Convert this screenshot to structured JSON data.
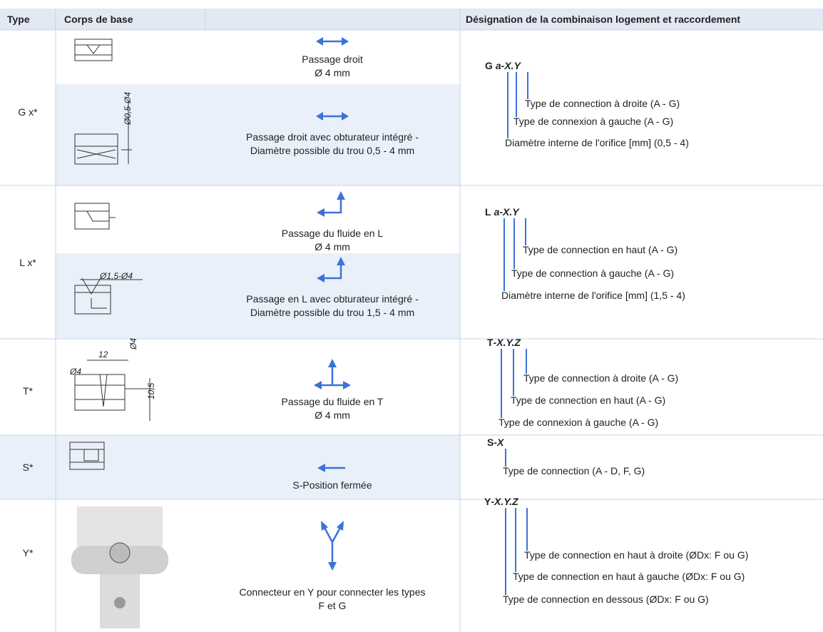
{
  "header": {
    "type": "Type",
    "body": "Corps de base",
    "designation": "Désignation de la combinaison logement et raccordement"
  },
  "groups": [
    {
      "type": "G x*",
      "rows": [
        {
          "flow": [
            "Passage droit",
            "Ø 4 mm"
          ]
        },
        {
          "drawing_labels": [
            "Ø0,5-Ø4"
          ],
          "flow": [
            "Passage droit avec obturateur intégré -",
            "Diamètre possible du trou 0,5 - 4 mm"
          ]
        }
      ],
      "designation": {
        "code": "G",
        "code_vars": "a-X.Y",
        "items": [
          "Type de connection à droite (A - G)",
          "Type de connexion à gauche (A - G)",
          "Diamètre interne de l'orifice [mm] (0,5 - 4)"
        ]
      }
    },
    {
      "type": "L x*",
      "rows": [
        {
          "flow": [
            "Passage du fluide en L",
            "Ø 4 mm"
          ]
        },
        {
          "drawing_labels": [
            "Ø1,5-Ø4"
          ],
          "flow": [
            "Passage en L avec obturateur intégré -",
            "Diamètre possible du trou 1,5 - 4 mm"
          ]
        }
      ],
      "designation": {
        "code": "L",
        "code_vars": "a-X.Y",
        "items": [
          "Type de connection en haut (A - G)",
          "Type de connection à gauche (A - G)",
          "Diamètre interne de l'orifice [mm] (1,5 - 4)"
        ]
      }
    },
    {
      "type": "T*",
      "rows": [
        {
          "drawing_labels": [
            "12",
            "Ø4",
            "Ø4",
            "10,5"
          ],
          "flow": [
            "Passage du fluide en T",
            "Ø 4 mm"
          ]
        }
      ],
      "designation": {
        "code": "T",
        "code_vars": "-X.Y.Z",
        "items": [
          "Type de connection à droite (A - G)",
          "Type de connection en haut (A - G)",
          "Type de connexion à gauche (A - G)"
        ]
      }
    },
    {
      "type": "S*",
      "rows": [
        {
          "flow": [
            "S-Position fermée"
          ]
        }
      ],
      "designation": {
        "code": "S",
        "code_vars": "-X",
        "items": [
          "Type de connection (A - D, F, G)"
        ]
      }
    },
    {
      "type": "Y*",
      "rows": [
        {
          "flow": [
            "Connecteur en Y pour connecter les types",
            "F et G"
          ]
        }
      ],
      "designation": {
        "code": "Y",
        "code_vars": "-X.Y.Z",
        "items": [
          "Type de connection en haut à droite (ØDx: F ou G)",
          "Type de connection en haut à gauche (ØDx: F ou G)",
          "Type de connection en dessous (ØDx: F ou G)"
        ]
      }
    }
  ]
}
